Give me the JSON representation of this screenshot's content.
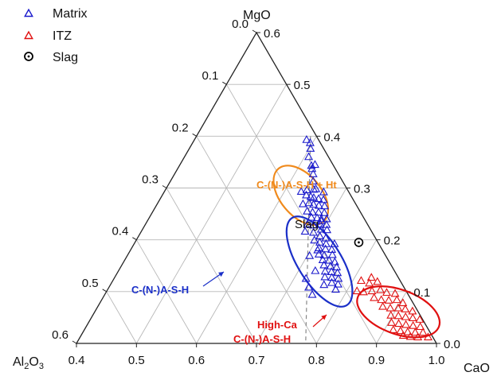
{
  "chart_data": {
    "type": "scatter",
    "subtype": "ternary",
    "components": {
      "top": "MgO",
      "bottom_left": "Al2O3",
      "bottom_right": "CaO"
    },
    "axes": {
      "cao": {
        "ticks": [
          "0.4",
          "0.5",
          "0.6",
          "0.7",
          "0.8",
          "0.9",
          "1.0"
        ],
        "range": [
          0.4,
          1.0
        ]
      },
      "mgo": {
        "ticks": [
          "0.0",
          "0.1",
          "0.2",
          "0.3",
          "0.4",
          "0.5",
          "0.6"
        ],
        "range": [
          0.0,
          0.6
        ]
      },
      "al2o3": {
        "ticks": [
          "0.0",
          "0.1",
          "0.2",
          "0.3",
          "0.4",
          "0.5",
          "0.6"
        ],
        "range": [
          0.0,
          0.6
        ]
      }
    },
    "grid": true,
    "legend": {
      "position": "top-left",
      "entries": [
        {
          "label": "Matrix",
          "marker": "triangle-open",
          "color": "#1a1acc"
        },
        {
          "label": "ITZ",
          "marker": "triangle-open",
          "color": "#e01010"
        },
        {
          "label": "Slag",
          "marker": "circle-dot",
          "color": "#000000"
        }
      ]
    },
    "series": [
      {
        "name": "Matrix",
        "color": "#1a1acc",
        "points": [
          [
            0.587,
            0.393
          ],
          [
            0.596,
            0.387
          ],
          [
            0.602,
            0.376
          ],
          [
            0.607,
            0.36
          ],
          [
            0.62,
            0.343
          ],
          [
            0.625,
            0.345
          ],
          [
            0.624,
            0.337
          ],
          [
            0.631,
            0.327
          ],
          [
            0.638,
            0.313
          ],
          [
            0.636,
            0.296
          ],
          [
            0.628,
            0.293
          ],
          [
            0.647,
            0.297
          ],
          [
            0.65,
            0.298
          ],
          [
            0.666,
            0.292
          ],
          [
            0.64,
            0.286
          ],
          [
            0.649,
            0.283
          ],
          [
            0.655,
            0.281
          ],
          [
            0.664,
            0.279
          ],
          [
            0.673,
            0.277
          ],
          [
            0.643,
            0.269
          ],
          [
            0.652,
            0.271
          ],
          [
            0.661,
            0.268
          ],
          [
            0.671,
            0.266
          ],
          [
            0.681,
            0.265
          ],
          [
            0.657,
            0.255
          ],
          [
            0.667,
            0.253
          ],
          [
            0.677,
            0.253
          ],
          [
            0.687,
            0.252
          ],
          [
            0.67,
            0.243
          ],
          [
            0.68,
            0.242
          ],
          [
            0.688,
            0.24
          ],
          [
            0.697,
            0.24
          ],
          [
            0.67,
            0.23
          ],
          [
            0.681,
            0.228
          ],
          [
            0.692,
            0.229
          ],
          [
            0.702,
            0.229
          ],
          [
            0.698,
            0.22
          ],
          [
            0.708,
            0.219
          ],
          [
            0.688,
            0.214
          ],
          [
            0.702,
            0.207
          ],
          [
            0.714,
            0.203
          ],
          [
            0.697,
            0.199
          ],
          [
            0.708,
            0.195
          ],
          [
            0.72,
            0.192
          ],
          [
            0.712,
            0.184
          ],
          [
            0.724,
            0.182
          ],
          [
            0.735,
            0.181
          ],
          [
            0.718,
            0.172
          ],
          [
            0.728,
            0.17
          ],
          [
            0.741,
            0.171
          ],
          [
            0.73,
            0.161
          ],
          [
            0.741,
            0.16
          ],
          [
            0.752,
            0.157
          ],
          [
            0.737,
            0.151
          ],
          [
            0.749,
            0.149
          ],
          [
            0.76,
            0.147
          ],
          [
            0.745,
            0.139
          ],
          [
            0.756,
            0.138
          ],
          [
            0.767,
            0.136
          ],
          [
            0.75,
            0.128
          ],
          [
            0.762,
            0.127
          ],
          [
            0.774,
            0.125
          ],
          [
            0.767,
            0.117
          ],
          [
            0.779,
            0.114
          ],
          [
            0.78,
            0.104
          ],
          [
            0.69,
            0.236
          ],
          [
            0.712,
            0.18
          ],
          [
            0.728,
            0.14
          ],
          [
            0.72,
            0.125
          ],
          [
            0.733,
            0.108
          ],
          [
            0.746,
            0.094
          ],
          [
            0.756,
            0.113
          ],
          [
            0.673,
            0.216
          ],
          [
            0.704,
            0.169
          ],
          [
            0.734,
            0.192
          ]
        ]
      },
      {
        "name": "ITZ",
        "color": "#e01010",
        "points": [
          [
            0.814,
            0.121
          ],
          [
            0.828,
            0.127
          ],
          [
            0.83,
            0.116
          ],
          [
            0.842,
            0.119
          ],
          [
            0.817,
            0.101
          ],
          [
            0.829,
            0.099
          ],
          [
            0.842,
            0.101
          ],
          [
            0.855,
            0.103
          ],
          [
            0.868,
            0.098
          ],
          [
            0.883,
            0.096
          ],
          [
            0.852,
            0.088
          ],
          [
            0.866,
            0.084
          ],
          [
            0.879,
            0.083
          ],
          [
            0.892,
            0.084
          ],
          [
            0.905,
            0.078
          ],
          [
            0.875,
            0.071
          ],
          [
            0.889,
            0.068
          ],
          [
            0.902,
            0.068
          ],
          [
            0.915,
            0.066
          ],
          [
            0.929,
            0.062
          ],
          [
            0.897,
            0.054
          ],
          [
            0.91,
            0.053
          ],
          [
            0.923,
            0.051
          ],
          [
            0.936,
            0.049
          ],
          [
            0.949,
            0.046
          ],
          [
            0.905,
            0.04
          ],
          [
            0.918,
            0.038
          ],
          [
            0.931,
            0.036
          ],
          [
            0.944,
            0.034
          ],
          [
            0.957,
            0.032
          ],
          [
            0.915,
            0.026
          ],
          [
            0.928,
            0.024
          ],
          [
            0.941,
            0.022
          ],
          [
            0.954,
            0.021
          ],
          [
            0.967,
            0.021
          ],
          [
            0.937,
            0.015
          ],
          [
            0.95,
            0.013
          ],
          [
            0.963,
            0.012
          ],
          [
            0.98,
            0.012
          ]
        ]
      },
      {
        "name": "Slag",
        "color": "#000000",
        "points": [
          [
            0.773,
            0.195
          ]
        ]
      }
    ],
    "ellipses": [
      {
        "color": "#f08a1c",
        "center": [
          0.631,
          0.286
        ],
        "rx": 0.058,
        "ry": 0.034,
        "rotation": 50
      },
      {
        "color": "#1a2fc8",
        "center": [
          0.726,
          0.158
        ],
        "rx": 0.086,
        "ry": 0.036,
        "rotation": 58
      },
      {
        "color": "#e01010",
        "center": [
          0.906,
          0.061
        ],
        "rx": 0.072,
        "ry": 0.037,
        "rotation": 20
      }
    ],
    "guide_line": {
      "color": "#888888",
      "dashed": true,
      "from": [
        0.59,
        0.4
      ],
      "to": [
        0.782,
        0.0
      ]
    },
    "annotations": [
      {
        "text": "C-(N-)A-S-H + Ht",
        "color": "#f08a1c"
      },
      {
        "text": "C-(N-)A-S-H",
        "color": "#1a2fc8"
      },
      {
        "text": "High-Ca",
        "color": "#e01010"
      },
      {
        "text": "C-(N-)A-S-H",
        "color": "#e01010"
      },
      {
        "text": "Slag",
        "color": "#111111"
      }
    ]
  }
}
